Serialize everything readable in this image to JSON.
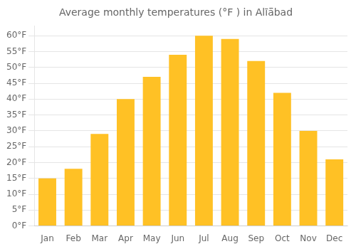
{
  "chart_data": {
    "type": "bar",
    "title": "Average monthly temperatures (°F ) in Alīā̈bad",
    "categories": [
      "Jan",
      "Feb",
      "Mar",
      "Apr",
      "May",
      "Jun",
      "Jul",
      "Aug",
      "Sep",
      "Oct",
      "Nov",
      "Dec"
    ],
    "values": [
      15,
      18,
      29,
      40,
      47,
      54,
      60,
      59,
      52,
      42,
      30,
      21
    ],
    "color": "#FFC125",
    "ylim": [
      0,
      63
    ],
    "yticks": [
      {
        "value": 0,
        "label": "0°F"
      },
      {
        "value": 5,
        "label": "5°F"
      },
      {
        "value": 10,
        "label": "10°F"
      },
      {
        "value": 15,
        "label": "15°F"
      },
      {
        "value": 20,
        "label": "20°F"
      },
      {
        "value": 25,
        "label": "25°F"
      },
      {
        "value": 30,
        "label": "30°F"
      },
      {
        "value": 35,
        "label": "35°F"
      },
      {
        "value": 40,
        "label": "40°F"
      },
      {
        "value": 45,
        "label": "45°F"
      },
      {
        "value": 50,
        "label": "50°F"
      },
      {
        "value": 55,
        "label": "55°F"
      },
      {
        "value": 60,
        "label": "60°F"
      }
    ],
    "grid": true
  }
}
